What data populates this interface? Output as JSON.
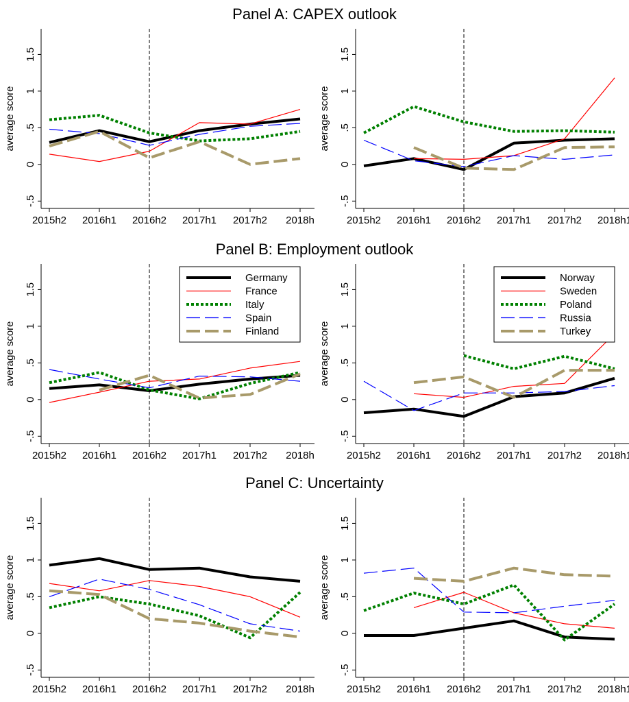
{
  "panels": [
    {
      "title": "Panel A: CAPEX outlook"
    },
    {
      "title": "Panel B: Employment outlook"
    },
    {
      "title": "Panel C: Uncertainty"
    }
  ],
  "legends": {
    "left": [
      "Germany",
      "France",
      "Italy",
      "Spain",
      "Finland"
    ],
    "right": [
      "Norway",
      "Sweden",
      "Poland",
      "Russia",
      "Turkey"
    ]
  },
  "series_styles": {
    "left": [
      {
        "name": "Germany",
        "color": "#000000",
        "dash": "solid",
        "width": "thick"
      },
      {
        "name": "France",
        "color": "#ff0000",
        "dash": "solid",
        "width": "thin"
      },
      {
        "name": "Italy",
        "color": "#008000",
        "dash": "dotted",
        "width": "thick"
      },
      {
        "name": "Spain",
        "color": "#0000ff",
        "dash": "long-dash",
        "width": "thin"
      },
      {
        "name": "Finland",
        "color": "#a89a6a",
        "dash": "long-dash",
        "width": "thick"
      }
    ],
    "right": [
      {
        "name": "Norway",
        "color": "#000000",
        "dash": "solid",
        "width": "thick"
      },
      {
        "name": "Sweden",
        "color": "#ff0000",
        "dash": "solid",
        "width": "thin"
      },
      {
        "name": "Poland",
        "color": "#008000",
        "dash": "dotted",
        "width": "thick"
      },
      {
        "name": "Russia",
        "color": "#0000ff",
        "dash": "long-dash",
        "width": "thin"
      },
      {
        "name": "Turkey",
        "color": "#a89a6a",
        "dash": "long-dash",
        "width": "thick"
      }
    ]
  },
  "chart_data": [
    {
      "type": "line",
      "panel": "Panel A: CAPEX outlook",
      "side": "left",
      "x": [
        "2015h2",
        "2016h1",
        "2016h2",
        "2017h1",
        "2017h2",
        "2018h1"
      ],
      "xtick_labels": [
        "2015h2",
        "2016h1",
        "2016h2",
        "2017h1",
        "2017h2",
        "2018h"
      ],
      "ylabel": "average score",
      "yticks": [
        "-.5",
        "0",
        ".5",
        "1",
        "1.5"
      ],
      "ylim": [
        -0.6,
        1.85
      ],
      "vline_at": "2016h2",
      "legend": null,
      "series": [
        {
          "name": "Germany",
          "values": [
            0.3,
            0.46,
            0.31,
            0.46,
            0.55,
            0.62
          ]
        },
        {
          "name": "France",
          "values": [
            0.14,
            0.04,
            0.18,
            0.57,
            0.55,
            0.75
          ]
        },
        {
          "name": "Italy",
          "values": [
            0.61,
            0.67,
            0.43,
            0.32,
            0.35,
            0.45
          ]
        },
        {
          "name": "Spain",
          "values": [
            0.48,
            0.42,
            0.26,
            0.41,
            0.52,
            0.56
          ]
        },
        {
          "name": "Finland",
          "values": [
            0.25,
            0.45,
            0.09,
            0.31,
            0.0,
            0.08
          ]
        }
      ]
    },
    {
      "type": "line",
      "panel": "Panel A: CAPEX outlook",
      "side": "right",
      "x": [
        "2015h2",
        "2016h1",
        "2016h2",
        "2017h1",
        "2017h2",
        "2018h1"
      ],
      "xtick_labels": [
        "2015h2",
        "2016h1",
        "2016h2",
        "2017h1",
        "2017h2",
        "2018h1"
      ],
      "ylabel": "average score",
      "yticks": [
        "-.5",
        "0",
        ".5",
        "1",
        "1.5"
      ],
      "ylim": [
        -0.6,
        1.85
      ],
      "vline_at": "2016h2",
      "legend": null,
      "series": [
        {
          "name": "Norway",
          "values": [
            -0.02,
            0.08,
            -0.07,
            0.29,
            0.33,
            0.35
          ]
        },
        {
          "name": "Sweden",
          "values": [
            null,
            0.08,
            0.07,
            0.12,
            0.35,
            1.18
          ]
        },
        {
          "name": "Poland",
          "values": [
            0.43,
            0.79,
            0.58,
            0.45,
            0.46,
            0.44
          ]
        },
        {
          "name": "Russia",
          "values": [
            0.33,
            0.05,
            -0.03,
            0.12,
            0.07,
            0.13
          ]
        },
        {
          "name": "Turkey",
          "values": [
            null,
            0.23,
            -0.05,
            -0.07,
            0.23,
            0.24
          ]
        }
      ]
    },
    {
      "type": "line",
      "panel": "Panel B: Employment outlook",
      "side": "left",
      "x": [
        "2015h2",
        "2016h1",
        "2016h2",
        "2017h1",
        "2017h2",
        "2018h1"
      ],
      "xtick_labels": [
        "2015h2",
        "2016h1",
        "2016h2",
        "2017h1",
        "2017h2",
        "2018h"
      ],
      "ylabel": "average score",
      "yticks": [
        "-.5",
        "0",
        ".5",
        "1",
        "1.5"
      ],
      "ylim": [
        -0.6,
        1.85
      ],
      "vline_at": "2016h2",
      "legend": "top-right",
      "series": [
        {
          "name": "Germany",
          "values": [
            0.15,
            0.2,
            0.12,
            0.21,
            0.28,
            0.33
          ]
        },
        {
          "name": "France",
          "values": [
            -0.04,
            0.1,
            0.25,
            0.28,
            0.43,
            0.52
          ]
        },
        {
          "name": "Italy",
          "values": [
            0.23,
            0.37,
            0.13,
            0.01,
            0.22,
            0.37
          ]
        },
        {
          "name": "Spain",
          "values": [
            0.41,
            0.28,
            0.16,
            0.32,
            0.31,
            0.25
          ]
        },
        {
          "name": "Finland",
          "values": [
            null,
            0.13,
            0.33,
            0.02,
            0.07,
            0.35
          ]
        }
      ]
    },
    {
      "type": "line",
      "panel": "Panel B: Employment outlook",
      "side": "right",
      "x": [
        "2015h2",
        "2016h1",
        "2016h2",
        "2017h1",
        "2017h2",
        "2018h1"
      ],
      "xtick_labels": [
        "2015h2",
        "2016h1",
        "2016h2",
        "2017h1",
        "2017h2",
        "2018h1"
      ],
      "ylabel": "average score",
      "yticks": [
        "-.5",
        "0",
        ".5",
        "1",
        "1.5"
      ],
      "ylim": [
        -0.6,
        1.85
      ],
      "vline_at": "2016h2",
      "legend": "top-right",
      "series": [
        {
          "name": "Norway",
          "values": [
            -0.18,
            -0.13,
            -0.23,
            0.04,
            0.09,
            0.29
          ]
        },
        {
          "name": "Sweden",
          "values": [
            null,
            0.08,
            0.03,
            0.18,
            0.22,
            0.9
          ]
        },
        {
          "name": "Poland",
          "values": [
            null,
            null,
            0.6,
            0.42,
            0.59,
            0.42
          ]
        },
        {
          "name": "Russia",
          "values": [
            0.25,
            -0.15,
            0.09,
            0.09,
            0.11,
            0.19
          ]
        },
        {
          "name": "Turkey",
          "values": [
            null,
            0.23,
            0.31,
            0.03,
            0.4,
            0.4
          ]
        }
      ]
    },
    {
      "type": "line",
      "panel": "Panel C: Uncertainty",
      "side": "left",
      "x": [
        "2015h2",
        "2016h1",
        "2016h2",
        "2017h1",
        "2017h2",
        "2018h1"
      ],
      "xtick_labels": [
        "2015h2",
        "2016h1",
        "2016h2",
        "2017h1",
        "2017h2",
        "2018h"
      ],
      "ylabel": "average score",
      "yticks": [
        "-.5",
        "0",
        ".5",
        "1",
        "1.5"
      ],
      "ylim": [
        -0.6,
        1.85
      ],
      "vline_at": "2016h2",
      "legend": null,
      "series": [
        {
          "name": "Germany",
          "values": [
            0.93,
            1.02,
            0.87,
            0.89,
            0.77,
            0.71
          ]
        },
        {
          "name": "France",
          "values": [
            0.68,
            0.58,
            0.72,
            0.64,
            0.5,
            0.22
          ]
        },
        {
          "name": "Italy",
          "values": [
            0.35,
            0.5,
            0.4,
            0.24,
            -0.06,
            0.56
          ]
        },
        {
          "name": "Spain",
          "values": [
            0.5,
            0.74,
            0.6,
            0.39,
            0.13,
            0.03
          ]
        },
        {
          "name": "Finland",
          "values": [
            0.58,
            0.53,
            0.2,
            0.14,
            0.03,
            -0.05
          ]
        }
      ]
    },
    {
      "type": "line",
      "panel": "Panel C: Uncertainty",
      "side": "right",
      "x": [
        "2015h2",
        "2016h1",
        "2016h2",
        "2017h1",
        "2017h2",
        "2018h1"
      ],
      "xtick_labels": [
        "2015h2",
        "2016h1",
        "2016h2",
        "2017h1",
        "2017h2",
        "2018h1"
      ],
      "ylabel": "average score",
      "yticks": [
        "-.5",
        "0",
        ".5",
        "1",
        "1.5"
      ],
      "ylim": [
        -0.6,
        1.85
      ],
      "vline_at": "2016h2",
      "legend": null,
      "series": [
        {
          "name": "Norway",
          "values": [
            -0.03,
            -0.03,
            0.07,
            0.17,
            -0.05,
            -0.08
          ]
        },
        {
          "name": "Sweden",
          "values": [
            null,
            0.35,
            0.56,
            0.28,
            0.13,
            0.07
          ]
        },
        {
          "name": "Poland",
          "values": [
            0.31,
            0.55,
            0.4,
            0.66,
            -0.09,
            0.4
          ]
        },
        {
          "name": "Russia",
          "values": [
            0.82,
            0.89,
            0.29,
            0.28,
            0.37,
            0.45
          ]
        },
        {
          "name": "Turkey",
          "values": [
            null,
            0.75,
            0.71,
            0.89,
            0.8,
            0.78
          ]
        }
      ]
    }
  ]
}
